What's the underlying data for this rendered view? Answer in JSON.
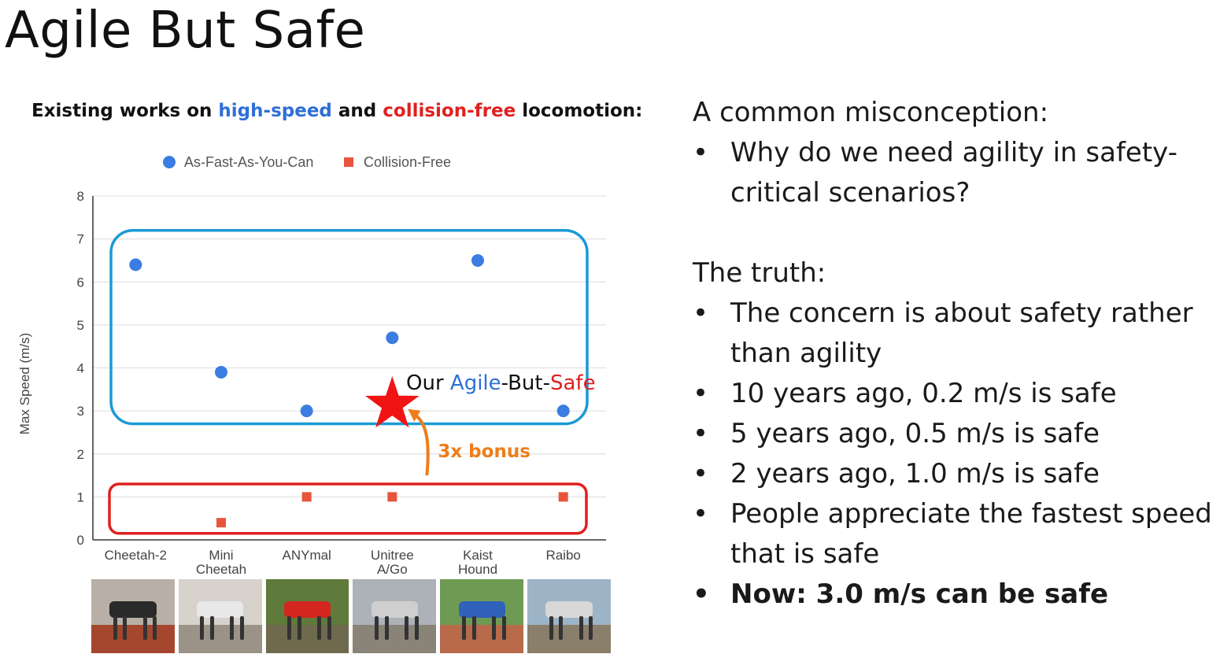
{
  "title": "Agile But Safe",
  "chart_heading": {
    "part1": "Existing works on ",
    "highlight_speed": "high-speed",
    "part2": " and ",
    "highlight_collision": "collision-free",
    "part3": " locomotion:"
  },
  "colors": {
    "blue_accent": "#2e6fd6",
    "red_accent": "#e02020",
    "fast_series": "#3b7de0",
    "safe_series": "#e8543b",
    "blue_box": "#1a9ad6",
    "red_box": "#e02020",
    "arrow": "#ee7d1a",
    "star": "#f01414"
  },
  "chart_data": {
    "type": "scatter",
    "categories": [
      "Cheetah-2",
      "Mini\nCheetah",
      "ANYmal",
      "Unitree\nA/Go",
      "Kaist\nHound",
      "Raibo"
    ],
    "series": [
      {
        "name": "As-Fast-As-You-Can",
        "marker": "circle",
        "points": [
          [
            0,
            6.4
          ],
          [
            1,
            3.9
          ],
          [
            2,
            3.0
          ],
          [
            3,
            4.7
          ],
          [
            4,
            6.5
          ],
          [
            5,
            3.0
          ]
        ]
      },
      {
        "name": "Collision-Free",
        "marker": "square",
        "points": [
          [
            1,
            0.4
          ],
          [
            2,
            1.0
          ],
          [
            3,
            1.0
          ],
          [
            5,
            1.0
          ]
        ]
      }
    ],
    "xlabel": "",
    "ylabel": "Max Speed (m/s)",
    "ylim": [
      0,
      8
    ],
    "yticks": [
      "0",
      "1",
      "2",
      "3",
      "4",
      "5",
      "6",
      "7",
      "8"
    ],
    "grid": true,
    "legend_position": "top",
    "annotations": {
      "highlight_point": {
        "category_index": 3.0,
        "value": 3.0,
        "marker": "star"
      },
      "our_label_prefix": "Our ",
      "our_label_agile": "Agile",
      "our_label_mid": "-But-",
      "our_label_safe": "Safe",
      "bonus_label": "3x bonus"
    }
  },
  "photos": [
    {
      "name": "cheetah-2",
      "ground": "#a5472e",
      "body": "#2a2a2a",
      "bg": "#b8b0a6"
    },
    {
      "name": "mini-cheetah",
      "ground": "#9c9388",
      "body": "#e8e8e8",
      "bg": "#d7d2cc"
    },
    {
      "name": "anymal",
      "ground": "#6f6a4e",
      "body": "#d2261e",
      "bg": "#5f7a3a"
    },
    {
      "name": "unitree",
      "ground": "#8a8478",
      "body": "#cfcfcf",
      "bg": "#adb2b8"
    },
    {
      "name": "kaist-hound",
      "ground": "#b86a4a",
      "body": "#2f62b8",
      "bg": "#6f9a54"
    },
    {
      "name": "raibo",
      "ground": "#8a7f6a",
      "body": "#d8d8d8",
      "bg": "#9db4c6"
    }
  ],
  "right": {
    "misconception_heading": "A common misconception:",
    "misconception_bullets": [
      "Why do we need agility in safety-critical scenarios?"
    ],
    "truth_heading": "The truth:",
    "truth_bullets": [
      "The concern is about safety rather than agility",
      "10 years ago, 0.2 m/s is safe",
      "5 years ago, 0.5 m/s is safe",
      "2 years ago, 1.0 m/s is safe",
      "People appreciate the fastest speed that is safe"
    ],
    "final_bullet": "Now: 3.0 m/s can be safe",
    "bullet_glyph": "•"
  }
}
